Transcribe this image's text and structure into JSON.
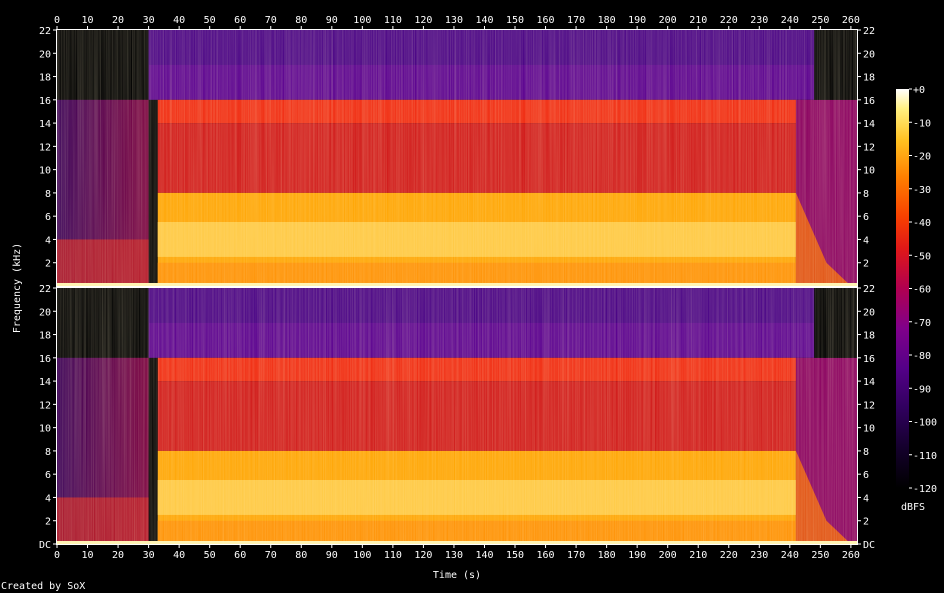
{
  "chart_data": {
    "type": "heatmap",
    "title": "",
    "xlabel": "Time (s)",
    "ylabel": "Frequency (kHz)",
    "x_ticks": [
      "0",
      "10",
      "20",
      "30",
      "40",
      "50",
      "60",
      "70",
      "80",
      "90",
      "100",
      "110",
      "120",
      "130",
      "140",
      "150",
      "160",
      "170",
      "180",
      "190",
      "200",
      "210",
      "220",
      "230",
      "240",
      "250",
      "260"
    ],
    "y_ticks_top": [
      "2",
      "4",
      "6",
      "8",
      "10",
      "12",
      "14",
      "16",
      "18",
      "20",
      "22"
    ],
    "y_ticks_bottom": [
      "DC",
      "2",
      "4",
      "6",
      "8",
      "10",
      "12",
      "14",
      "16",
      "18",
      "20",
      "22"
    ],
    "xlim": [
      0,
      262
    ],
    "ylim": [
      0,
      22
    ],
    "colorbar": {
      "label": "dBFS",
      "ticks": [
        "+0",
        "-10",
        "-20",
        "-30",
        "-40",
        "-50",
        "-60",
        "-70",
        "-80",
        "-90",
        "-100",
        "-110",
        "-120"
      ],
      "range": [
        -120,
        0
      ]
    },
    "channels": 2,
    "footer": "Created by SoX",
    "colormap": [
      "#000000",
      "#1a0038",
      "#3c0078",
      "#6a0090",
      "#a00068",
      "#d81020",
      "#f03000",
      "#ff7000",
      "#ffb000",
      "#ffe060",
      "#ffffff"
    ]
  }
}
